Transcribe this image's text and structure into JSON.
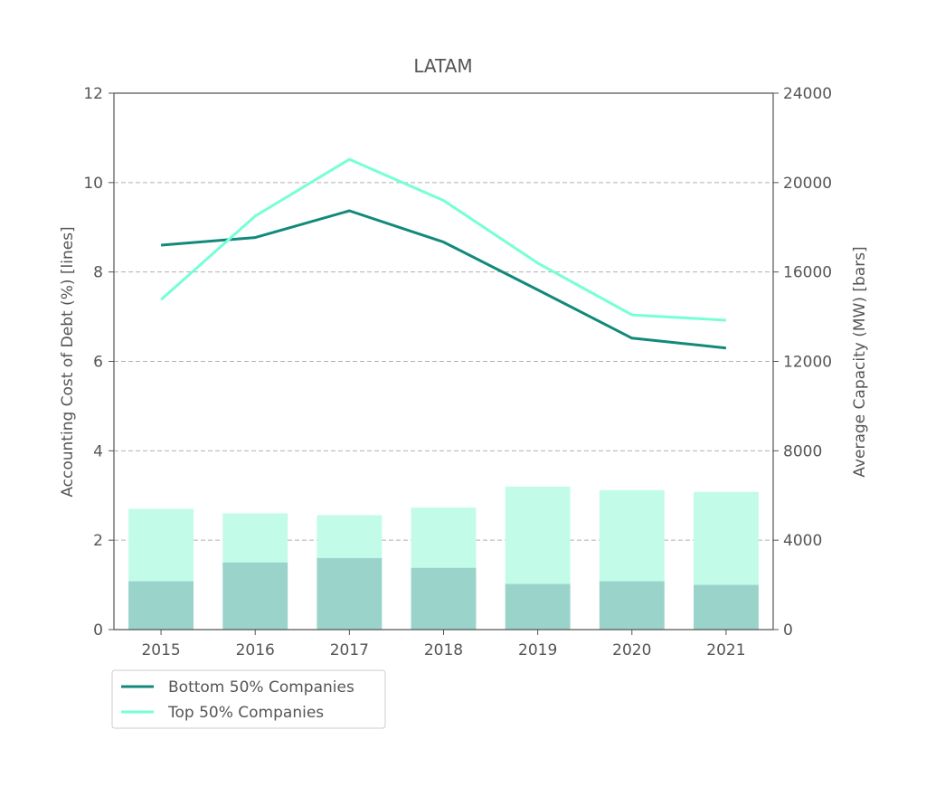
{
  "chart_data": {
    "type": "bar+line",
    "title": "LATAM",
    "categories": [
      "2015",
      "2016",
      "2017",
      "2018",
      "2019",
      "2020",
      "2021"
    ],
    "left_axis": {
      "label": "Accounting Cost of Debt (%)  [lines]",
      "ylim": [
        0,
        12
      ],
      "ticks": [
        "0",
        "2",
        "4",
        "6",
        "8",
        "10",
        "12"
      ]
    },
    "right_axis": {
      "label": "Average Capacity (MW) [bars]",
      "ylim": [
        0,
        24000
      ],
      "ticks": [
        "0",
        "4000",
        "8000",
        "12000",
        "16000",
        "20000",
        "24000"
      ]
    },
    "grid": "horizontal dashed",
    "legend_position": "below-left",
    "lines": [
      {
        "name": "Bottom 50% Companies",
        "color": "#12897a",
        "values": [
          8.6,
          8.77,
          9.37,
          8.67,
          7.6,
          6.52,
          6.3
        ]
      },
      {
        "name": "Top 50% Companies",
        "color": "#76ffd6",
        "values": [
          7.38,
          9.25,
          10.52,
          9.6,
          8.2,
          7.04,
          6.92
        ]
      }
    ],
    "bars": [
      {
        "series": "Top 50% Companies",
        "color": "#c2fbe8",
        "values": [
          5400,
          5200,
          5120,
          5460,
          6400,
          6240,
          6160
        ]
      },
      {
        "series": "Bottom 50% Companies",
        "color": "#9ad3ca",
        "values": [
          2160,
          3000,
          3200,
          2760,
          2040,
          2160,
          2000
        ]
      }
    ],
    "colors": {
      "axis": "#555555",
      "grid": "#b0b0b0",
      "text": "#555555"
    }
  }
}
